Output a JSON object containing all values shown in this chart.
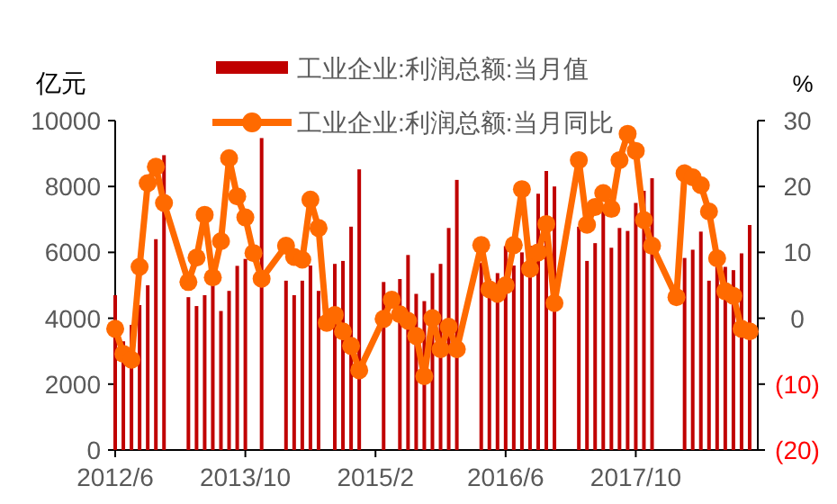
{
  "chart_data": {
    "type": "bar",
    "ylabel": "亿元",
    "y2label": "%",
    "legend": "top",
    "marker": "circle",
    "line_style": "solid",
    "x": [
      "2012-06",
      "2012-07",
      "2012-08",
      "2012-09",
      "2012-10",
      "2012-11",
      "2012-12",
      "2013-03",
      "2013-04",
      "2013-05",
      "2013-06",
      "2013-07",
      "2013-08",
      "2013-09",
      "2013-10",
      "2013-11",
      "2013-12",
      "2014-03",
      "2014-04",
      "2014-05",
      "2014-06",
      "2014-07",
      "2014-08",
      "2014-09",
      "2014-10",
      "2014-11",
      "2014-12",
      "2015-03",
      "2015-04",
      "2015-05",
      "2015-06",
      "2015-07",
      "2015-08",
      "2015-09",
      "2015-10",
      "2015-11",
      "2015-12",
      "2016-03",
      "2016-04",
      "2016-05",
      "2016-06",
      "2016-07",
      "2016-08",
      "2016-09",
      "2016-10",
      "2016-11",
      "2016-12",
      "2017-03",
      "2017-04",
      "2017-05",
      "2017-06",
      "2017-07",
      "2017-08",
      "2017-09",
      "2017-10",
      "2017-11",
      "2017-12",
      "2018-03",
      "2018-04",
      "2018-05",
      "2018-06",
      "2018-07",
      "2018-08",
      "2018-09",
      "2018-10",
      "2018-11",
      "2018-12"
    ],
    "series": [
      {
        "name": "工业企业:利润总额:当月值",
        "color": "#c00000",
        "values": [
          4700,
          3300,
          3800,
          4400,
          5000,
          6400,
          8950,
          4640,
          4370,
          4700,
          5000,
          4220,
          4830,
          5590,
          5800,
          null,
          9470,
          5140,
          4700,
          5140,
          5600,
          4830,
          null,
          5650,
          5740,
          6780,
          8520,
          5100,
          null,
          5190,
          5920,
          4740,
          4520,
          5370,
          5650,
          6740,
          8200,
          5680,
          5200,
          5370,
          6190,
          5600,
          6000,
          6200,
          7780,
          8470,
          8000,
          6780,
          5740,
          6280,
          7380,
          6140,
          6740,
          6650,
          7500,
          7870,
          8250,
          null,
          5830,
          6080,
          6630,
          5140,
          5570,
          5560,
          5460,
          5970,
          6830
        ]
      },
      {
        "name": "工业企业:利润总额:当月同比",
        "type": "line",
        "axis": "y2",
        "color": "#ff6a00",
        "values": [
          -1.6,
          -5.4,
          -6.3,
          7.8,
          20.5,
          23,
          17.5,
          5.5,
          9.2,
          15.7,
          6.2,
          11.7,
          24.3,
          18.5,
          15.3,
          9.9,
          6,
          11,
          9.3,
          8.9,
          18,
          13.7,
          -0.7,
          0.5,
          -2,
          -4.2,
          -7.9,
          -0.1,
          2.8,
          0.6,
          -0.4,
          -2.7,
          -8.8,
          0,
          -4.7,
          -1.3,
          -4.7,
          11.1,
          4.4,
          3.7,
          5,
          11.1,
          19.6,
          7.5,
          10,
          14.3,
          2.3,
          24,
          14.2,
          16.9,
          19,
          16.6,
          24,
          28,
          25.4,
          14.9,
          11,
          3.2,
          22,
          21.4,
          20.2,
          16.2,
          9.1,
          4.1,
          3.4,
          -1.6,
          -2
        ]
      }
    ],
    "xlim": [
      "2012-06",
      "2019-01"
    ],
    "xticks": [
      {
        "value": "2012-06",
        "label": "2012/6"
      },
      {
        "value": "2013-10",
        "label": "2013/10"
      },
      {
        "value": "2015-02",
        "label": "2015/2"
      },
      {
        "value": "2016-06",
        "label": "2016/6"
      },
      {
        "value": "2017-10",
        "label": "2017/10"
      }
    ],
    "ylim": [
      0,
      10000
    ],
    "yticks": [
      0,
      2000,
      4000,
      6000,
      8000,
      10000
    ],
    "y2lim": [
      -20,
      30
    ],
    "y2ticks": [
      {
        "value": -20,
        "label": "(20)"
      },
      {
        "value": -10,
        "label": "(10)"
      },
      0,
      10,
      20,
      30
    ]
  }
}
